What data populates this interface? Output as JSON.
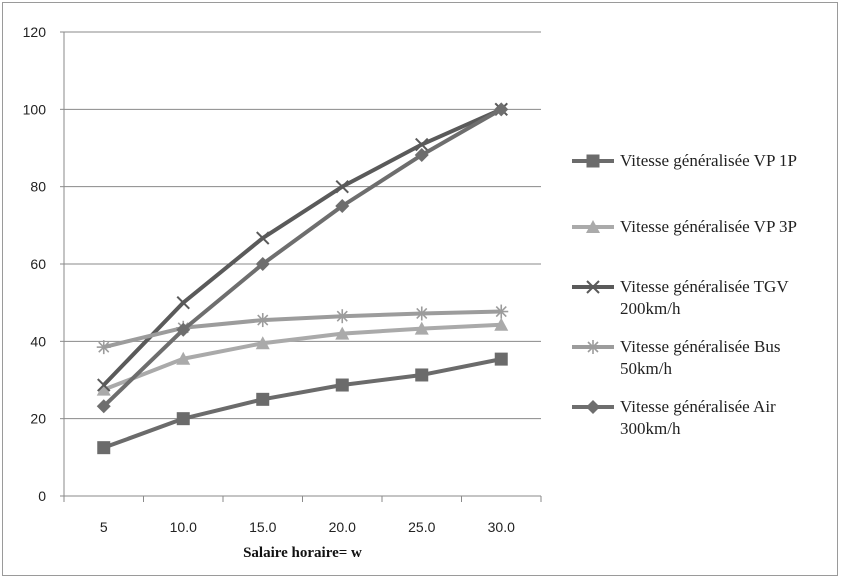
{
  "chart_data": {
    "type": "line",
    "title": "",
    "xlabel": "Salaire horaire= w",
    "ylabel": "",
    "categories": [
      "5",
      "10.0",
      "15.0",
      "20.0",
      "25.0",
      "30.0"
    ],
    "ylim": [
      0,
      120
    ],
    "yticks": [
      "0",
      "20",
      "40",
      "60",
      "80",
      "100",
      "120"
    ],
    "grid": true,
    "legend_position": "right",
    "series": [
      {
        "name": "Vitesse généralisée VP 1P",
        "marker": "square",
        "color": "#6b6b6b",
        "values": [
          12.5,
          20,
          25,
          28.7,
          31.3,
          35.4
        ]
      },
      {
        "name": "Vitesse généralisée VP 3P",
        "marker": "triangle",
        "color": "#aaaaaa",
        "values": [
          27.5,
          35.5,
          39.5,
          42,
          43.3,
          44.3
        ]
      },
      {
        "name": "Vitesse généralisée TGV 200km/h",
        "marker": "x",
        "color": "#5a5a5a",
        "values": [
          28.7,
          50,
          66.7,
          80,
          90.9,
          100
        ]
      },
      {
        "name": "Vitesse généralisée Bus 50km/h",
        "marker": "star",
        "color": "#9c9c9c",
        "values": [
          38.5,
          43.5,
          45.5,
          46.5,
          47.2,
          47.7
        ]
      },
      {
        "name": "Vitesse généralisée Air 300km/h",
        "marker": "diamond",
        "color": "#6e6e6e",
        "values": [
          23.2,
          43,
          60,
          75,
          88.2,
          100
        ]
      }
    ]
  }
}
